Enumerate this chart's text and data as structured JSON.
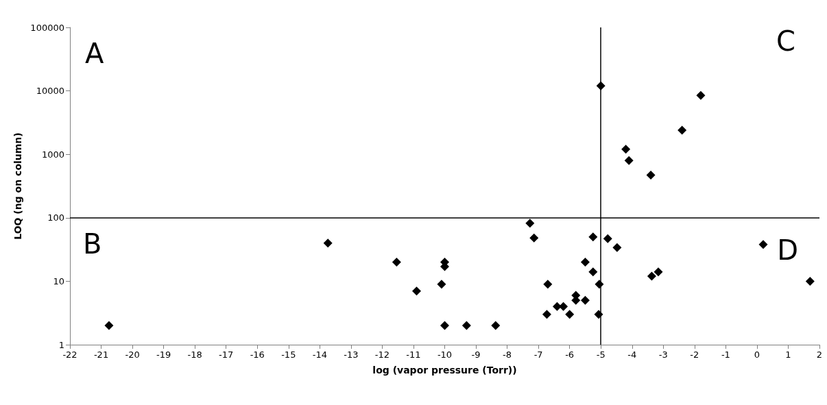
{
  "chart_data": {
    "type": "scatter",
    "xlabel": "log (vapor pressure (Torr))",
    "ylabel": "LOQ (ng on column)",
    "annotations": [
      "A",
      "B",
      "C",
      "D"
    ],
    "series": [
      {
        "color": "#000000",
        "x": [
          -20.75,
          -13.74,
          -11.54,
          -10.9,
          -10.1,
          -10,
          -10,
          -10,
          -9.3,
          -8.37,
          -7.27,
          -7.14,
          -6.73,
          -6.7,
          -6.4,
          -6.2,
          -6.0,
          -5.8,
          -5.8,
          -5.5,
          -5.5,
          -5.25,
          -5.25,
          -5.05,
          -5.07,
          -4.78,
          -4.48,
          -3.37,
          -3.16,
          0.2,
          1.7,
          -5.0,
          -4.2,
          -4.1,
          -3.4,
          -2.4,
          -1.8
        ],
        "values": [
          2,
          40,
          20,
          7,
          9,
          20,
          17,
          2,
          2,
          2,
          82,
          48,
          3,
          9,
          4,
          4,
          3,
          6,
          5,
          5,
          20,
          50,
          14,
          9,
          3,
          47,
          34,
          12,
          14,
          38,
          10,
          12000,
          1200,
          800,
          470,
          2400,
          8500
        ]
      }
    ],
    "xlim": [
      -22,
      2
    ],
    "xticks": [
      -22,
      -21,
      -20,
      -19,
      -18,
      -17,
      -16,
      -15,
      -14,
      -13,
      -12,
      -11,
      -10,
      -9,
      -8,
      -7,
      -6,
      -5,
      -4,
      -3,
      -2,
      -1,
      0,
      1,
      2
    ],
    "ylim": [
      1,
      100000
    ],
    "yticks": [
      1,
      10,
      100,
      1000,
      10000,
      100000
    ],
    "log": "y",
    "grid": false,
    "marker": "diamond",
    "ref_lines": [
      {
        "axis": "x",
        "value": -5,
        "color": "#000000"
      },
      {
        "axis": "y",
        "value": 100,
        "color": "#000000"
      }
    ]
  }
}
